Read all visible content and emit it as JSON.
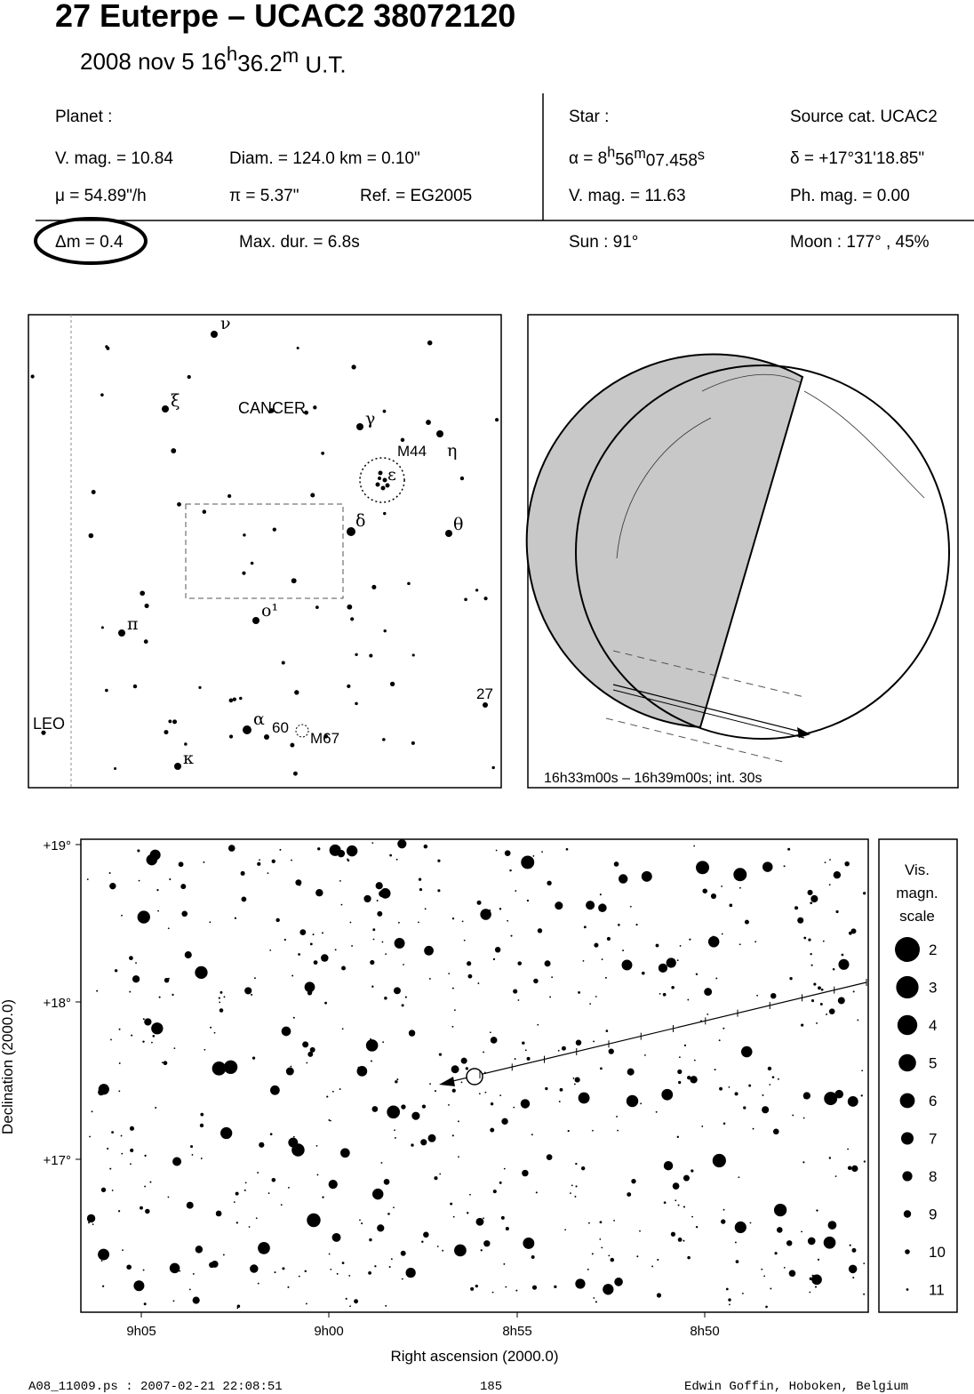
{
  "header": {
    "title": "27 Euterpe  –  UCAC2 38072120",
    "date": [
      "2008 nov  5  16",
      "h",
      "36.2",
      "m",
      " U.T."
    ]
  },
  "planet": {
    "heading": "Planet :",
    "vmag": "V. mag. = 10.84",
    "diam": "Diam. = 124.0 km = 0.10\"",
    "mu": "μ =  54.89\"/h",
    "parallax": "π =  5.37\"",
    "ref": "Ref. = EG2005"
  },
  "star": {
    "heading": "Star :",
    "source": "Source cat.  UCAC2",
    "ra": [
      "α =  8",
      "h",
      "56",
      "m",
      "07.458",
      "s"
    ],
    "dec": "δ = +17°31'18.85\"",
    "vmag": "V. mag. = 11.63",
    "phmag": "Ph. mag. =  0.00"
  },
  "circumstances": {
    "dm": "Δm = 0.4",
    "maxdur": "Max. dur. = 6.8s",
    "sun": "Sun :  91°",
    "moon": "Moon : 177° , 45%"
  },
  "finder": {
    "constellations": [
      "CANCER",
      "LEO"
    ],
    "labels": [
      "ν",
      "ξ",
      "γ",
      "M44",
      "η",
      "ε",
      "δ",
      "θ",
      "ο¹",
      "π",
      "27",
      "α",
      "60",
      "M67",
      "κ"
    ]
  },
  "globe": {
    "caption": "16h33m00s – 16h39m00s; int. 30s"
  },
  "chart": {
    "y_axis_label": "Declination (2000.0)",
    "x_axis_label": "Right ascension (2000.0)",
    "yticks": [
      "+19°",
      "+18°",
      "+17°"
    ],
    "xticks": [
      "9h05",
      "9h00",
      "8h55",
      "8h50"
    ]
  },
  "legend": {
    "title": [
      "Vis.",
      "magn.",
      "scale"
    ],
    "magnitudes": [
      2,
      3,
      4,
      5,
      6,
      7,
      8,
      9,
      10,
      11
    ]
  },
  "footer": {
    "file": "A08_11009.ps : 2007-02-21 22:08:51",
    "page": "185",
    "author": "Edwin Goffin, Hoboken, Belgium"
  }
}
